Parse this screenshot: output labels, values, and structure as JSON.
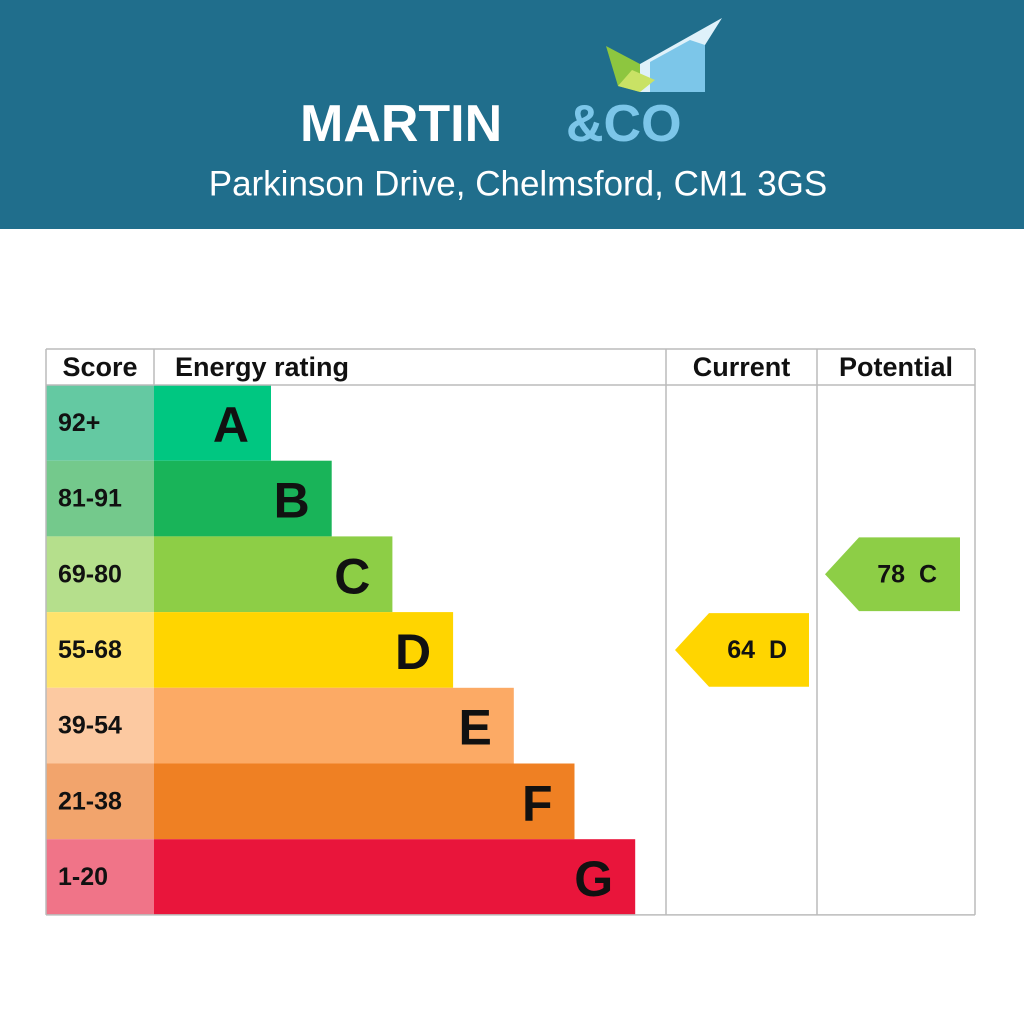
{
  "header": {
    "brand_main": "MARTIN",
    "brand_accent": "&CO",
    "address": "Parkinson Drive, Chelmsford, CM1 3GS"
  },
  "table": {
    "columns": [
      "Score",
      "Energy rating",
      "Current",
      "Potential"
    ],
    "rows": [
      {
        "score": "92+",
        "band": "A",
        "color": "#00c781",
        "score_color": "#64c9a2"
      },
      {
        "score": "81-91",
        "band": "B",
        "color": "#19b459",
        "score_color": "#74c98c"
      },
      {
        "score": "69-80",
        "band": "C",
        "color": "#8dce46",
        "score_color": "#b5df8c"
      },
      {
        "score": "55-68",
        "band": "D",
        "color": "#ffd500",
        "score_color": "#ffe36b"
      },
      {
        "score": "39-54",
        "band": "E",
        "color": "#fcaa65",
        "score_color": "#fcc9a1"
      },
      {
        "score": "21-38",
        "band": "F",
        "color": "#ef8023",
        "score_color": "#f2a46c"
      },
      {
        "score": "1-20",
        "band": "G",
        "color": "#e9153b",
        "score_color": "#f07488"
      }
    ],
    "current": {
      "score": 64,
      "band": "D"
    },
    "potential": {
      "score": 78,
      "band": "C"
    }
  }
}
